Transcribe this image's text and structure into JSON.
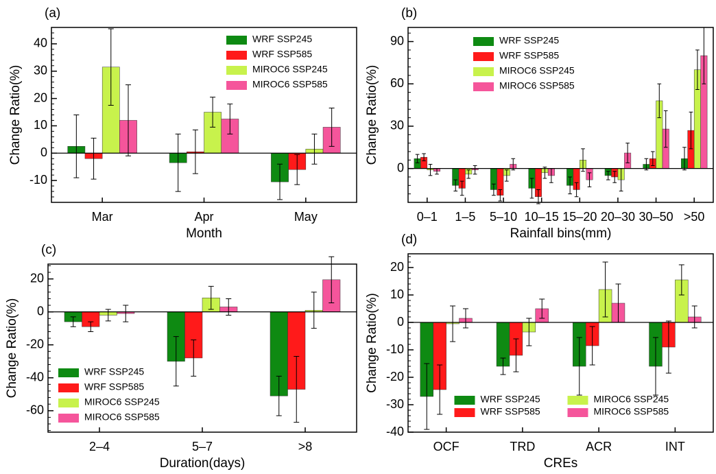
{
  "chart_data": [
    {
      "type": "bar",
      "panel_label": "(a)",
      "xlabel": "Month",
      "ylabel": "Change Ratio(%)",
      "categories": [
        "Mar",
        "Apr",
        "May"
      ],
      "ylim": [
        -18,
        46
      ],
      "yticks": [
        -10,
        0,
        10,
        20,
        30,
        40
      ],
      "legend": "upper right",
      "series": [
        {
          "name": "WRF SSP245",
          "color": "#0e8a12",
          "values": [
            2.5,
            -3.5,
            -10.5
          ],
          "errors": [
            11.5,
            10.5,
            6.5
          ]
        },
        {
          "name": "WRF SSP585",
          "color": "#ff1a1a",
          "values": [
            -2,
            0.5,
            -6
          ],
          "errors": [
            7.5,
            8,
            5.5
          ]
        },
        {
          "name": "MIROC6 SSP245",
          "color": "#c8f24c",
          "values": [
            31.5,
            15,
            1.5
          ],
          "errors": [
            14,
            5.5,
            5.5
          ]
        },
        {
          "name": "MIROC6 SSP585",
          "color": "#f5559b",
          "values": [
            12,
            12.5,
            9.5
          ],
          "errors": [
            13,
            5.5,
            7
          ]
        }
      ]
    },
    {
      "type": "bar",
      "panel_label": "(b)",
      "xlabel": "Rainfall bins(mm)",
      "ylabel": "Change Ratio(%)",
      "categories": [
        "0–1",
        "1–5",
        "5–10",
        "10–15",
        "15–20",
        "20–30",
        "30–50",
        ">50"
      ],
      "ylim": [
        -24,
        100
      ],
      "yticks": [
        0,
        30,
        60,
        90
      ],
      "legend": "upper left",
      "series": [
        {
          "name": "WRF SSP245",
          "color": "#0e8a12",
          "values": [
            7,
            -12,
            -15,
            -14,
            -12,
            -5,
            3,
            7
          ],
          "errors": [
            3,
            4,
            4,
            7,
            6,
            3,
            4,
            8
          ]
        },
        {
          "name": "WRF SSP585",
          "color": "#ff1a1a",
          "values": [
            8,
            -14,
            -19,
            -20,
            -15,
            -6,
            7,
            27
          ],
          "errors": [
            2.5,
            5,
            4,
            5,
            5,
            4,
            5,
            13
          ]
        },
        {
          "name": "MIROC6 SSP245",
          "color": "#c8f24c",
          "values": [
            -1,
            -4,
            -5,
            -3,
            6,
            -8,
            48,
            70
          ],
          "errors": [
            4,
            3,
            4,
            4,
            8,
            8,
            12,
            14
          ]
        },
        {
          "name": "MIROC6 SSP585",
          "color": "#f5559b",
          "values": [
            -2,
            -1,
            3,
            -5,
            -8,
            11,
            28,
            80
          ],
          "errors": [
            2,
            3,
            4,
            5,
            5,
            7,
            13,
            20
          ]
        }
      ]
    },
    {
      "type": "bar",
      "panel_label": "(c)",
      "xlabel": "Duration(days)",
      "ylabel": "Change Ratio(%)",
      "categories": [
        "2–4",
        "5–7",
        ">8"
      ],
      "ylim": [
        -73,
        29
      ],
      "yticks": [
        -60,
        -40,
        -20,
        0,
        20
      ],
      "legend": "lower left",
      "series": [
        {
          "name": "WRF SSP245",
          "color": "#0e8a12",
          "values": [
            -6,
            -30,
            -51
          ],
          "errors": [
            3,
            15,
            12
          ]
        },
        {
          "name": "WRF SSP585",
          "color": "#ff1a1a",
          "values": [
            -9,
            -28,
            -47
          ],
          "errors": [
            3,
            11,
            20
          ]
        },
        {
          "name": "MIROC6 SSP245",
          "color": "#c8f24c",
          "values": [
            -2,
            8.5,
            1
          ],
          "errors": [
            3.5,
            7,
            11
          ]
        },
        {
          "name": "MIROC6 SSP585",
          "color": "#f5559b",
          "values": [
            -1,
            3,
            19.5
          ],
          "errors": [
            5,
            5,
            14
          ]
        }
      ]
    },
    {
      "type": "bar",
      "panel_label": "(d)",
      "xlabel": "CREs",
      "ylabel": "Change Ratio(%)",
      "categories": [
        "OCF",
        "TRD",
        "ACR",
        "INT"
      ],
      "ylim": [
        -40,
        25
      ],
      "yticks": [
        -40,
        -30,
        -20,
        -10,
        0,
        10,
        20
      ],
      "legend": "lower center",
      "legend_columns": 2,
      "series": [
        {
          "name": "WRF SSP245",
          "color": "#0e8a12",
          "values": [
            -27,
            -16,
            -16,
            -16
          ],
          "errors": [
            12,
            3,
            10.5,
            10.5
          ]
        },
        {
          "name": "WRF SSP585",
          "color": "#ff1a1a",
          "values": [
            -24.5,
            -12,
            -8.5,
            -9
          ],
          "errors": [
            9,
            6,
            7,
            9.5
          ]
        },
        {
          "name": "MIROC6 SSP245",
          "color": "#c8f24c",
          "values": [
            -0.5,
            -3.5,
            12,
            15.5
          ],
          "errors": [
            6.5,
            5,
            10,
            5.5
          ]
        },
        {
          "name": "MIROC6 SSP585",
          "color": "#f5559b",
          "values": [
            1.5,
            5,
            7,
            2
          ],
          "errors": [
            3.5,
            3.5,
            7,
            4
          ]
        }
      ]
    }
  ]
}
